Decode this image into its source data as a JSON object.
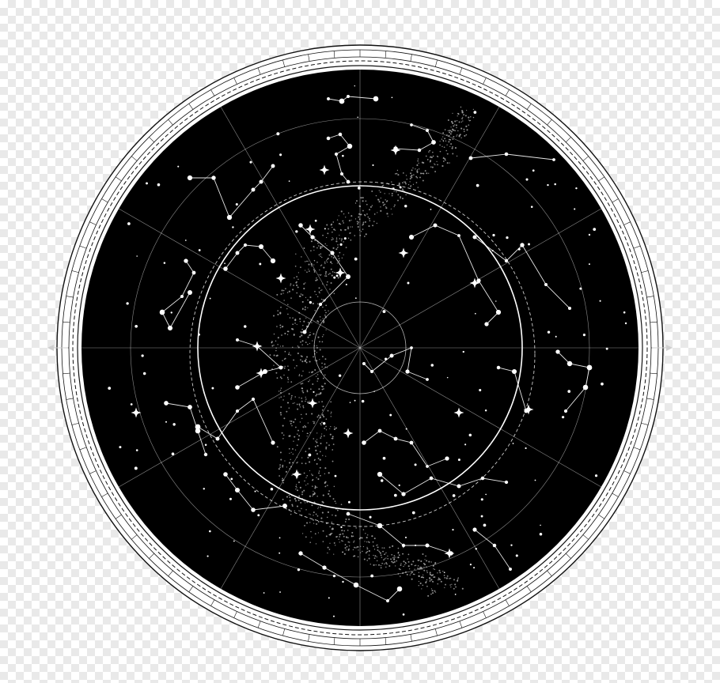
{
  "map": {
    "type": "planisphere",
    "colors": {
      "sky": "#000000",
      "lines": "#ffffff",
      "stars": "#ffffff",
      "milky_way": "#b9b9b9",
      "frame": "#ffffff",
      "frame_outline": "#111111",
      "backdrop": "#ffffff"
    },
    "grid": {
      "meridians": 12,
      "declination_circles": 4,
      "ecliptic": "dashed"
    },
    "compass": {
      "east_marker": "left",
      "west_marker": "right"
    }
  }
}
